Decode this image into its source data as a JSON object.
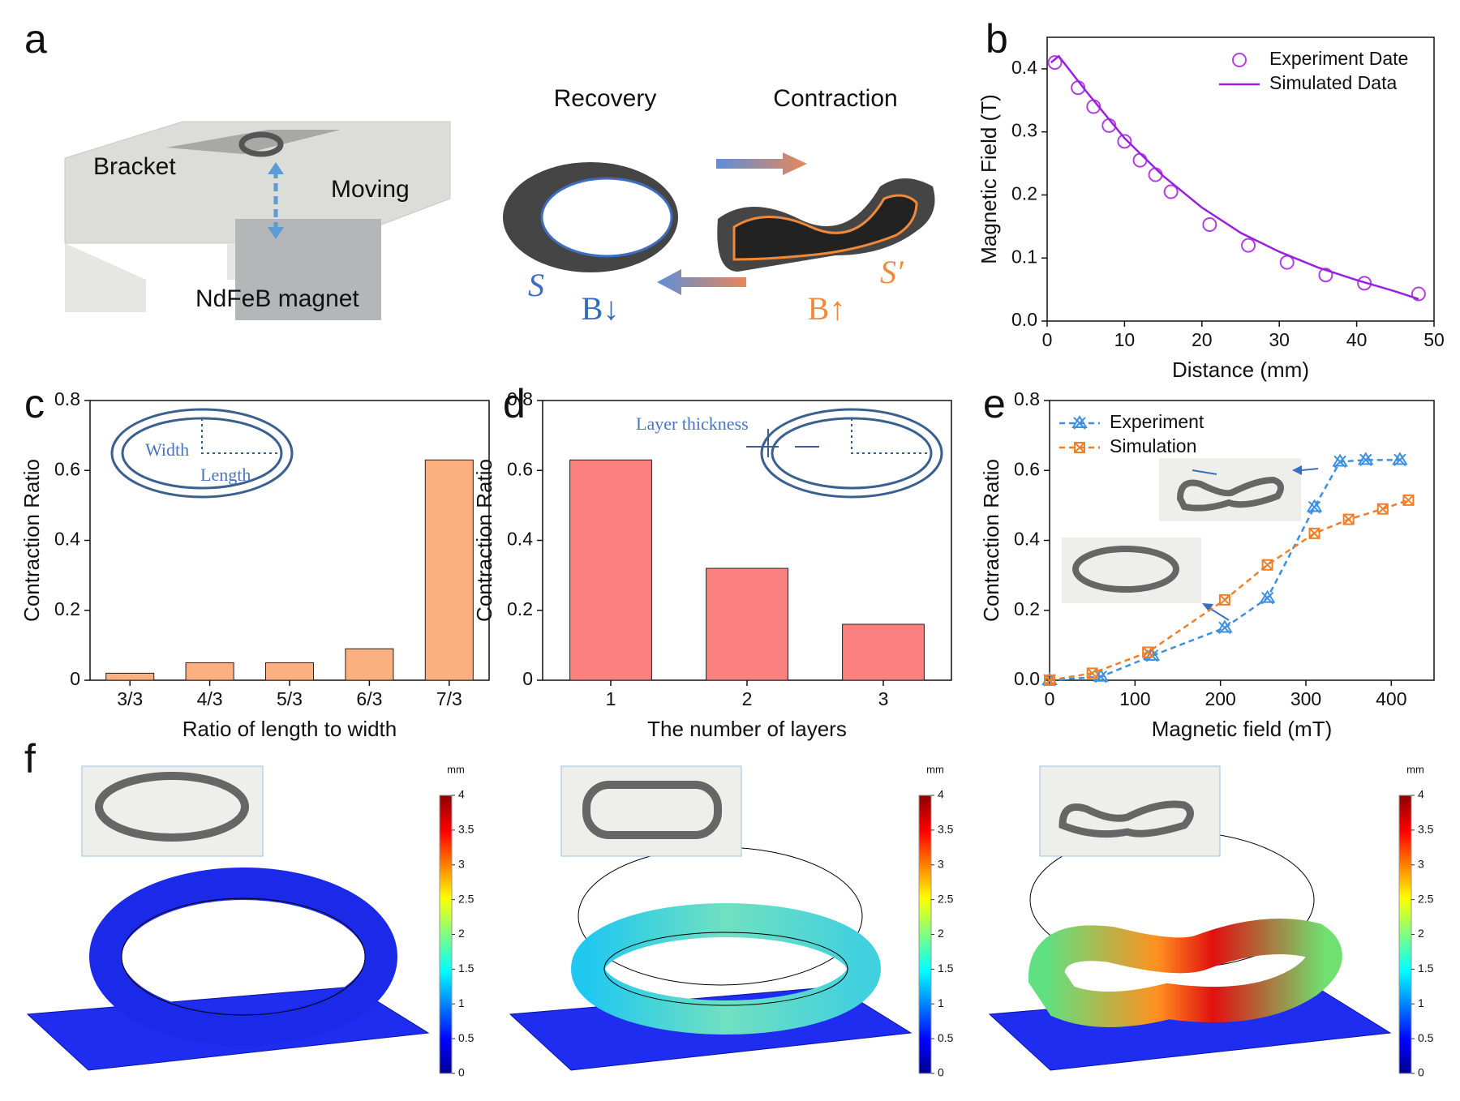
{
  "panel_labels": [
    "a",
    "b",
    "c",
    "d",
    "e",
    "f"
  ],
  "panel_a": {
    "parts": [
      "Bracket",
      "Moving",
      "NdFeB magnet"
    ],
    "states": [
      "Recovery",
      "Contraction"
    ],
    "shapes": [
      "S",
      "S′"
    ],
    "fields": [
      "B↓",
      "B↑"
    ]
  },
  "chart_data": [
    {
      "type": "line",
      "xlabel": "Distance (mm)",
      "ylabel": "Magnetic Field (T)",
      "xlim": [
        0,
        50
      ],
      "xticks": [
        0,
        10,
        20,
        30,
        40,
        50
      ],
      "ylim": [
        0,
        0.45
      ],
      "yticks": [
        {
          "value": 0,
          "label": "0.0"
        },
        0.1,
        0.2,
        0.3,
        0.4
      ],
      "legend": "upper right",
      "series": [
        {
          "name": "Experiment Date",
          "color": "#b040e0",
          "marker": "circle",
          "line": "none",
          "x": [
            1,
            4,
            6,
            8,
            10,
            12,
            14,
            16,
            21,
            26,
            31,
            36,
            41,
            48
          ],
          "values": [
            0.41,
            0.37,
            0.34,
            0.31,
            0.285,
            0.255,
            0.232,
            0.205,
            0.153,
            0.12,
            0.093,
            0.073,
            0.06,
            0.043
          ]
        },
        {
          "name": "Simulated Data",
          "color": "#9a1fe0",
          "marker": "none",
          "line": "solid",
          "x": [
            0.5,
            1.5,
            5,
            10,
            15,
            20,
            25,
            30,
            35,
            40,
            45,
            48
          ],
          "values": [
            0.41,
            0.42,
            0.365,
            0.29,
            0.23,
            0.18,
            0.14,
            0.11,
            0.085,
            0.065,
            0.047,
            0.035
          ]
        }
      ]
    },
    {
      "type": "bar",
      "xlabel": "Ratio of length to width",
      "ylabel": "Contraction Ratio",
      "categories": [
        "3/3",
        "4/3",
        "5/3",
        "6/3",
        "7/3"
      ],
      "values": [
        0.02,
        0.05,
        0.05,
        0.09,
        0.63
      ],
      "color": "#fdb07f",
      "ylim": [
        0,
        0.8
      ],
      "yticks": [
        0,
        0.2,
        0.4,
        0.6,
        0.8
      ],
      "annotations": [
        "Width",
        "Length"
      ]
    },
    {
      "type": "bar",
      "xlabel": "The number of layers",
      "ylabel": "Contraction Ratio",
      "categories": [
        "1",
        "2",
        "3"
      ],
      "values": [
        0.63,
        0.32,
        0.16
      ],
      "color": "#fb8080",
      "ylim": [
        0,
        0.8
      ],
      "yticks": [
        0,
        0.2,
        0.4,
        0.6,
        0.8
      ],
      "annotations": [
        "Layer thickness"
      ]
    },
    {
      "type": "line",
      "xlabel": "Magnetic field (mT)",
      "ylabel": "Contraction Ratio",
      "xlim": [
        0,
        450
      ],
      "xticks": [
        0,
        100,
        200,
        300,
        400
      ],
      "ylim": [
        0,
        0.8
      ],
      "yticks": [
        {
          "value": 0,
          "label": "0.0"
        },
        0.2,
        0.4,
        0.6,
        0.8
      ],
      "legend": "upper left",
      "series": [
        {
          "name": "Experiment",
          "color": "#3d8fe0",
          "marker": "x-triangle",
          "line": "dashed",
          "x": [
            0,
            60,
            120,
            205,
            255,
            310,
            340,
            370,
            410
          ],
          "values": [
            0,
            0.01,
            0.07,
            0.15,
            0.235,
            0.495,
            0.625,
            0.63,
            0.63
          ]
        },
        {
          "name": "Simulation",
          "color": "#f07f2a",
          "marker": "x-box",
          "line": "dashed",
          "x": [
            0,
            50,
            115,
            205,
            255,
            310,
            350,
            390,
            420
          ],
          "values": [
            0,
            0.02,
            0.08,
            0.23,
            0.33,
            0.42,
            0.46,
            0.49,
            0.515
          ]
        }
      ]
    }
  ],
  "colorbar": {
    "unit": "mm",
    "ylim": [
      0,
      4
    ],
    "yticks": [
      0,
      0.5,
      1,
      1.5,
      2,
      2.5,
      3,
      3.5,
      4
    ]
  }
}
